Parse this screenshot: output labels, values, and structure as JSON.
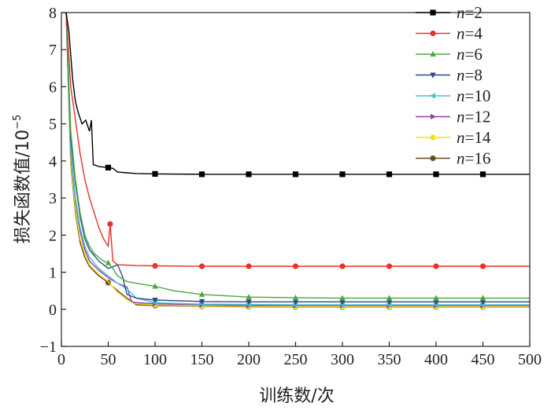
{
  "chart_data": {
    "type": "line",
    "xlabel": "训练数/次",
    "ylabel": "损失函数值/10",
    "ylabel_exponent": "−5",
    "xlim": [
      0,
      500
    ],
    "ylim": [
      -1,
      8
    ],
    "x_ticks": [
      "0",
      "50",
      "100",
      "150",
      "200",
      "250",
      "300",
      "350",
      "400",
      "450",
      "500"
    ],
    "y_ticks": [
      "−1",
      "0",
      "1",
      "2",
      "3",
      "4",
      "5",
      "6",
      "7",
      "8"
    ],
    "legend_position": "top-right",
    "grid": false,
    "series": [
      {
        "name": "n=2",
        "label_var": "n",
        "label_val": "=2",
        "color": "#000000",
        "marker": "square",
        "points": [
          [
            5,
            8
          ],
          [
            8,
            7.5
          ],
          [
            12,
            6.2
          ],
          [
            15,
            5.6
          ],
          [
            18,
            5.3
          ],
          [
            22,
            5.0
          ],
          [
            26,
            5.1
          ],
          [
            30,
            4.8
          ],
          [
            32,
            5.1
          ],
          [
            34,
            3.9
          ],
          [
            40,
            3.85
          ],
          [
            50,
            3.82
          ],
          [
            55,
            3.8
          ],
          [
            60,
            3.7
          ],
          [
            70,
            3.68
          ],
          [
            80,
            3.66
          ],
          [
            100,
            3.65
          ],
          [
            150,
            3.64
          ],
          [
            200,
            3.64
          ],
          [
            250,
            3.64
          ],
          [
            300,
            3.64
          ],
          [
            350,
            3.64
          ],
          [
            400,
            3.64
          ],
          [
            450,
            3.64
          ],
          [
            500,
            3.64
          ]
        ],
        "marker_x": [
          50,
          100,
          150,
          200,
          250,
          300,
          350,
          400,
          450
        ]
      },
      {
        "name": "n=4",
        "label_var": "n",
        "label_val": "=4",
        "color": "#e8322a",
        "marker": "circle",
        "points": [
          [
            5,
            8
          ],
          [
            10,
            6.0
          ],
          [
            15,
            5.1
          ],
          [
            20,
            4.2
          ],
          [
            25,
            3.5
          ],
          [
            30,
            3.0
          ],
          [
            35,
            2.6
          ],
          [
            40,
            2.2
          ],
          [
            45,
            1.9
          ],
          [
            50,
            1.7
          ],
          [
            52,
            2.3
          ],
          [
            55,
            1.3
          ],
          [
            60,
            1.2
          ],
          [
            80,
            1.18
          ],
          [
            100,
            1.17
          ],
          [
            150,
            1.16
          ],
          [
            200,
            1.16
          ],
          [
            250,
            1.16
          ],
          [
            300,
            1.16
          ],
          [
            350,
            1.16
          ],
          [
            400,
            1.16
          ],
          [
            450,
            1.16
          ],
          [
            500,
            1.16
          ]
        ],
        "marker_x": [
          52,
          100,
          150,
          200,
          250,
          300,
          350,
          400,
          450
        ]
      },
      {
        "name": "n=6",
        "label_var": "n",
        "label_val": "=6",
        "color": "#4aa93d",
        "marker": "triangle-up",
        "points": [
          [
            5,
            8
          ],
          [
            10,
            4.8
          ],
          [
            15,
            3.5
          ],
          [
            20,
            2.6
          ],
          [
            25,
            2.0
          ],
          [
            30,
            1.7
          ],
          [
            35,
            1.5
          ],
          [
            40,
            1.4
          ],
          [
            45,
            1.3
          ],
          [
            50,
            1.25
          ],
          [
            55,
            1.1
          ],
          [
            60,
            0.9
          ],
          [
            70,
            0.75
          ],
          [
            80,
            0.7
          ],
          [
            100,
            0.62
          ],
          [
            120,
            0.5
          ],
          [
            150,
            0.4
          ],
          [
            200,
            0.33
          ],
          [
            250,
            0.31
          ],
          [
            300,
            0.3
          ],
          [
            350,
            0.3
          ],
          [
            400,
            0.3
          ],
          [
            450,
            0.3
          ],
          [
            500,
            0.3
          ]
        ],
        "marker_x": [
          50,
          100,
          150,
          200,
          250,
          300,
          350,
          400,
          450
        ]
      },
      {
        "name": "n=8",
        "label_var": "n",
        "label_val": "=8",
        "color": "#2c4a8a",
        "marker": "triangle-down",
        "points": [
          [
            5,
            8
          ],
          [
            10,
            4.6
          ],
          [
            15,
            3.4
          ],
          [
            20,
            2.5
          ],
          [
            25,
            1.9
          ],
          [
            30,
            1.6
          ],
          [
            40,
            1.3
          ],
          [
            50,
            1.1
          ],
          [
            60,
            1.2
          ],
          [
            65,
            0.9
          ],
          [
            70,
            0.4
          ],
          [
            80,
            0.3
          ],
          [
            100,
            0.25
          ],
          [
            150,
            0.21
          ],
          [
            200,
            0.2
          ],
          [
            250,
            0.2
          ],
          [
            300,
            0.2
          ],
          [
            350,
            0.2
          ],
          [
            400,
            0.2
          ],
          [
            450,
            0.2
          ],
          [
            500,
            0.2
          ]
        ],
        "marker_x": [
          100,
          150,
          200,
          250,
          300,
          350,
          400,
          450
        ]
      },
      {
        "name": "n=10",
        "label_var": "n",
        "label_val": "=10",
        "color": "#44c2d8",
        "marker": "triangle-left",
        "points": [
          [
            5,
            8
          ],
          [
            10,
            4.3
          ],
          [
            15,
            3.0
          ],
          [
            20,
            2.2
          ],
          [
            25,
            1.7
          ],
          [
            30,
            1.4
          ],
          [
            40,
            1.1
          ],
          [
            50,
            0.9
          ],
          [
            60,
            0.7
          ],
          [
            70,
            0.55
          ],
          [
            80,
            0.3
          ],
          [
            100,
            0.18
          ],
          [
            150,
            0.14
          ],
          [
            200,
            0.13
          ],
          [
            250,
            0.12
          ],
          [
            300,
            0.12
          ],
          [
            350,
            0.12
          ],
          [
            400,
            0.12
          ],
          [
            450,
            0.12
          ],
          [
            500,
            0.12
          ]
        ],
        "marker_x": [
          100,
          150,
          200,
          250,
          300,
          350,
          400,
          450
        ]
      },
      {
        "name": "n=12",
        "label_var": "n",
        "label_val": "=12",
        "color": "#8e3fa8",
        "marker": "triangle-right",
        "points": [
          [
            5,
            8
          ],
          [
            10,
            4.2
          ],
          [
            15,
            2.9
          ],
          [
            20,
            2.1
          ],
          [
            25,
            1.6
          ],
          [
            30,
            1.3
          ],
          [
            40,
            1.05
          ],
          [
            50,
            0.85
          ],
          [
            60,
            0.7
          ],
          [
            70,
            0.6
          ],
          [
            75,
            0.2
          ],
          [
            80,
            0.18
          ],
          [
            100,
            0.15
          ],
          [
            150,
            0.12
          ],
          [
            200,
            0.1
          ],
          [
            250,
            0.1
          ],
          [
            300,
            0.1
          ],
          [
            350,
            0.1
          ],
          [
            400,
            0.1
          ],
          [
            450,
            0.1
          ],
          [
            500,
            0.1
          ]
        ],
        "marker_x": [
          100,
          150,
          200,
          250,
          300,
          350,
          400,
          450
        ]
      },
      {
        "name": "n=14",
        "label_var": "n",
        "label_val": "=14",
        "color": "#f2e21c",
        "marker": "circle",
        "points": [
          [
            5,
            8
          ],
          [
            10,
            4.0
          ],
          [
            15,
            2.7
          ],
          [
            20,
            1.9
          ],
          [
            25,
            1.5
          ],
          [
            30,
            1.2
          ],
          [
            40,
            0.95
          ],
          [
            50,
            0.75
          ],
          [
            60,
            0.45
          ],
          [
            70,
            0.25
          ],
          [
            80,
            0.15
          ],
          [
            100,
            0.12
          ],
          [
            150,
            0.09
          ],
          [
            200,
            0.08
          ],
          [
            250,
            0.07
          ],
          [
            300,
            0.07
          ],
          [
            350,
            0.07
          ],
          [
            400,
            0.07
          ],
          [
            450,
            0.07
          ],
          [
            500,
            0.07
          ]
        ],
        "marker_x": [
          100,
          150,
          200,
          250,
          300,
          350,
          400,
          450
        ]
      },
      {
        "name": "n=16",
        "label_var": "n",
        "label_val": "=16",
        "color": "#6b4a1e",
        "marker": "circle",
        "points": [
          [
            5,
            8
          ],
          [
            10,
            3.9
          ],
          [
            15,
            2.6
          ],
          [
            20,
            1.8
          ],
          [
            25,
            1.4
          ],
          [
            30,
            1.15
          ],
          [
            40,
            0.9
          ],
          [
            50,
            0.72
          ],
          [
            60,
            0.5
          ],
          [
            70,
            0.3
          ],
          [
            80,
            0.12
          ],
          [
            100,
            0.1
          ],
          [
            150,
            0.08
          ],
          [
            200,
            0.07
          ],
          [
            250,
            0.06
          ],
          [
            300,
            0.06
          ],
          [
            350,
            0.06
          ],
          [
            400,
            0.06
          ],
          [
            450,
            0.06
          ],
          [
            500,
            0.06
          ]
        ],
        "marker_x": [
          50,
          100,
          150,
          200,
          250,
          300,
          350,
          400,
          450
        ]
      }
    ]
  }
}
